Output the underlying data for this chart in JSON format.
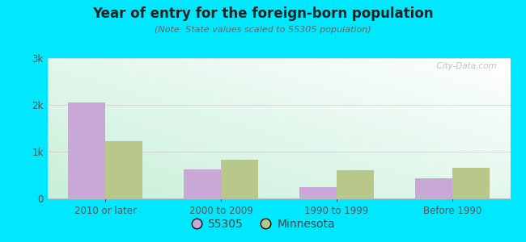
{
  "title": "Year of entry for the foreign-born population",
  "subtitle": "(Note: State values scaled to 55305 population)",
  "categories": [
    "2010 or later",
    "2000 to 2009",
    "1990 to 1999",
    "Before 1990"
  ],
  "values_55305": [
    2050,
    620,
    250,
    430
  ],
  "values_mn": [
    1230,
    820,
    600,
    650
  ],
  "bar_color_55305": "#c9a8d8",
  "bar_color_mn": "#b8c88a",
  "background_outer": "#00e8ff",
  "ylim": [
    0,
    3000
  ],
  "yticks": [
    0,
    1000,
    2000,
    3000
  ],
  "ytick_labels": [
    "0",
    "1k",
    "2k",
    "3k"
  ],
  "bar_width": 0.32,
  "legend_labels": [
    "55305",
    "Minnesota"
  ],
  "watermark": "  City-Data.com"
}
